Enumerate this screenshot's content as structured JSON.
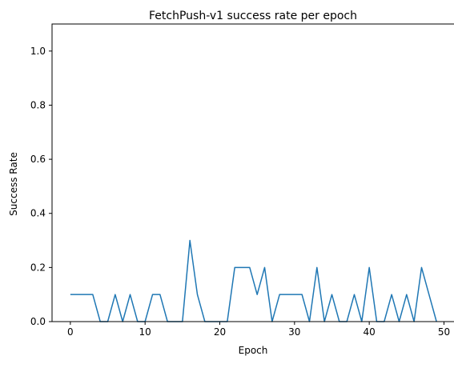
{
  "chart_data": {
    "type": "line",
    "title": "FetchPush-v1 success rate per epoch",
    "xlabel": "Epoch",
    "ylabel": "Success Rate",
    "xlim": [
      -2.45,
      51.45
    ],
    "ylim": [
      0,
      1.1
    ],
    "xticks": [
      0,
      10,
      20,
      30,
      40,
      50
    ],
    "xtick_labels": [
      "0",
      "10",
      "20",
      "30",
      "40",
      "50"
    ],
    "yticks": [
      0.0,
      0.2,
      0.4,
      0.6,
      0.8,
      1.0
    ],
    "ytick_labels": [
      "0.0",
      "0.2",
      "0.4",
      "0.6",
      "0.8",
      "1.0"
    ],
    "grid": false,
    "color": "#1f77b4",
    "series": [
      {
        "x": [
          0,
          1,
          2,
          3,
          4,
          5,
          6,
          7,
          8,
          9,
          10,
          11,
          12,
          13,
          14,
          15,
          16,
          17,
          18,
          19,
          20,
          21,
          22,
          23,
          24,
          25,
          26,
          27,
          28,
          29,
          30,
          31,
          32,
          33,
          34,
          35,
          36,
          37,
          38,
          39,
          40,
          41,
          42,
          43,
          44,
          45,
          46,
          47,
          48,
          49
        ],
        "values": [
          0.1,
          0.1,
          0.1,
          0.1,
          0.0,
          0.0,
          0.1,
          0.0,
          0.1,
          0.0,
          0.0,
          0.1,
          0.1,
          0.0,
          0.0,
          0.0,
          0.3,
          0.1,
          0.0,
          0.0,
          0.0,
          0.0,
          0.2,
          0.2,
          0.2,
          0.1,
          0.2,
          0.0,
          0.1,
          0.1,
          0.1,
          0.1,
          0.0,
          0.2,
          0.0,
          0.1,
          0.0,
          0.0,
          0.1,
          0.0,
          0.2,
          0.0,
          0.0,
          0.1,
          0.0,
          0.1,
          0.0,
          0.2,
          0.1,
          0.0
        ]
      }
    ]
  }
}
